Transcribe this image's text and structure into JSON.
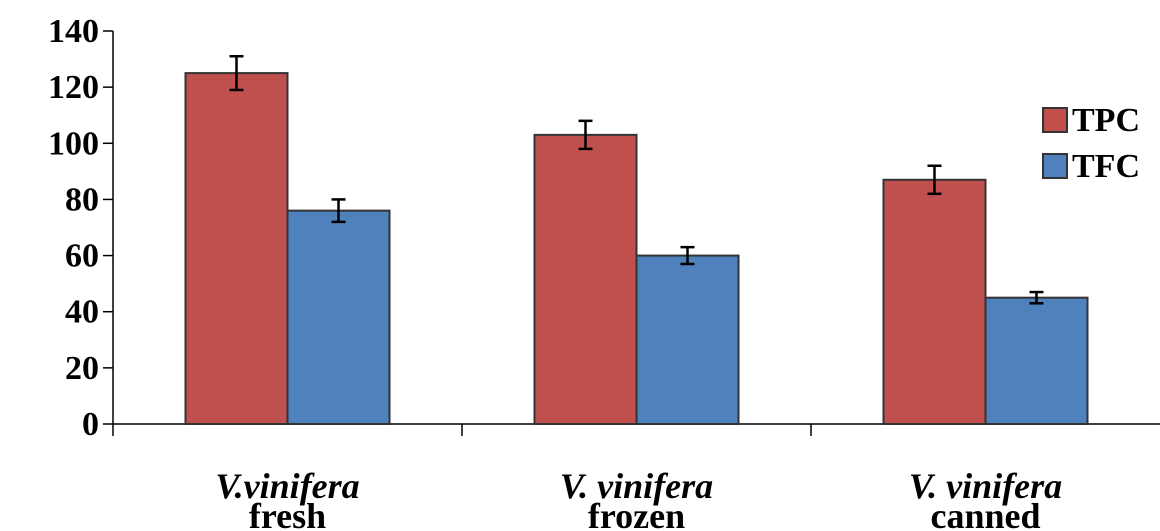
{
  "chart_data": {
    "type": "bar",
    "categories": [
      {
        "line1": "V.vinifera",
        "line2": "fresh"
      },
      {
        "line1": "V. vinifera",
        "line2": "frozen"
      },
      {
        "line1": "V. vinifera",
        "line2": "canned"
      }
    ],
    "series": [
      {
        "name": "TPC",
        "color": "#c0504d",
        "values": [
          125,
          103,
          87
        ],
        "errors": [
          6,
          5,
          5
        ]
      },
      {
        "name": "TFC",
        "color": "#4f81bd",
        "values": [
          76,
          60,
          45
        ],
        "errors": [
          4,
          3,
          2
        ]
      }
    ],
    "ylim": [
      0,
      140
    ],
    "yticks": [
      0,
      20,
      40,
      60,
      80,
      100,
      120,
      140
    ],
    "legend": "right",
    "grid": false
  }
}
